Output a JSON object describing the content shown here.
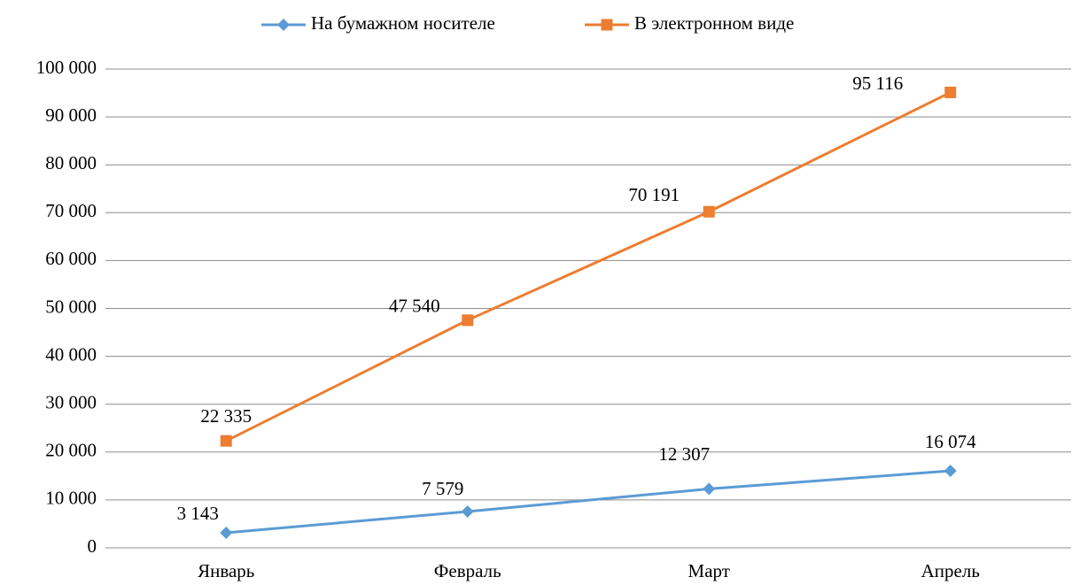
{
  "chart_data": {
    "type": "line",
    "categories": [
      "Январь",
      "Февраль",
      "Март",
      "Апрель"
    ],
    "series": [
      {
        "name": "На бумажном носителе",
        "color": "#5b9bd5",
        "marker": "diamond",
        "values": [
          3143,
          7579,
          12307,
          16074
        ],
        "value_labels": [
          "3 143",
          "7 579",
          "12 307",
          "16 074"
        ]
      },
      {
        "name": "В электронном виде",
        "color": "#ed7d31",
        "marker": "square",
        "values": [
          22335,
          47540,
          70191,
          95116
        ],
        "value_labels": [
          "22 335",
          "47 540",
          "70 191",
          "95 116"
        ]
      }
    ],
    "ylim": [
      0,
      100000
    ],
    "yticks": [
      0,
      {
        "value": 10000,
        "label": "10 000"
      },
      {
        "value": 20000,
        "label": "20 000"
      },
      {
        "value": 30000,
        "label": "30 000"
      },
      {
        "value": 40000,
        "label": "40 000"
      },
      {
        "value": 50000,
        "label": "50 000"
      },
      {
        "value": 60000,
        "label": "60 000"
      },
      {
        "value": 70000,
        "label": "70 000"
      },
      {
        "value": 80000,
        "label": "80 000"
      },
      {
        "value": 90000,
        "label": "90 000"
      },
      {
        "value": 100000,
        "label": "100 000"
      }
    ],
    "grid": true,
    "legend": "top"
  }
}
